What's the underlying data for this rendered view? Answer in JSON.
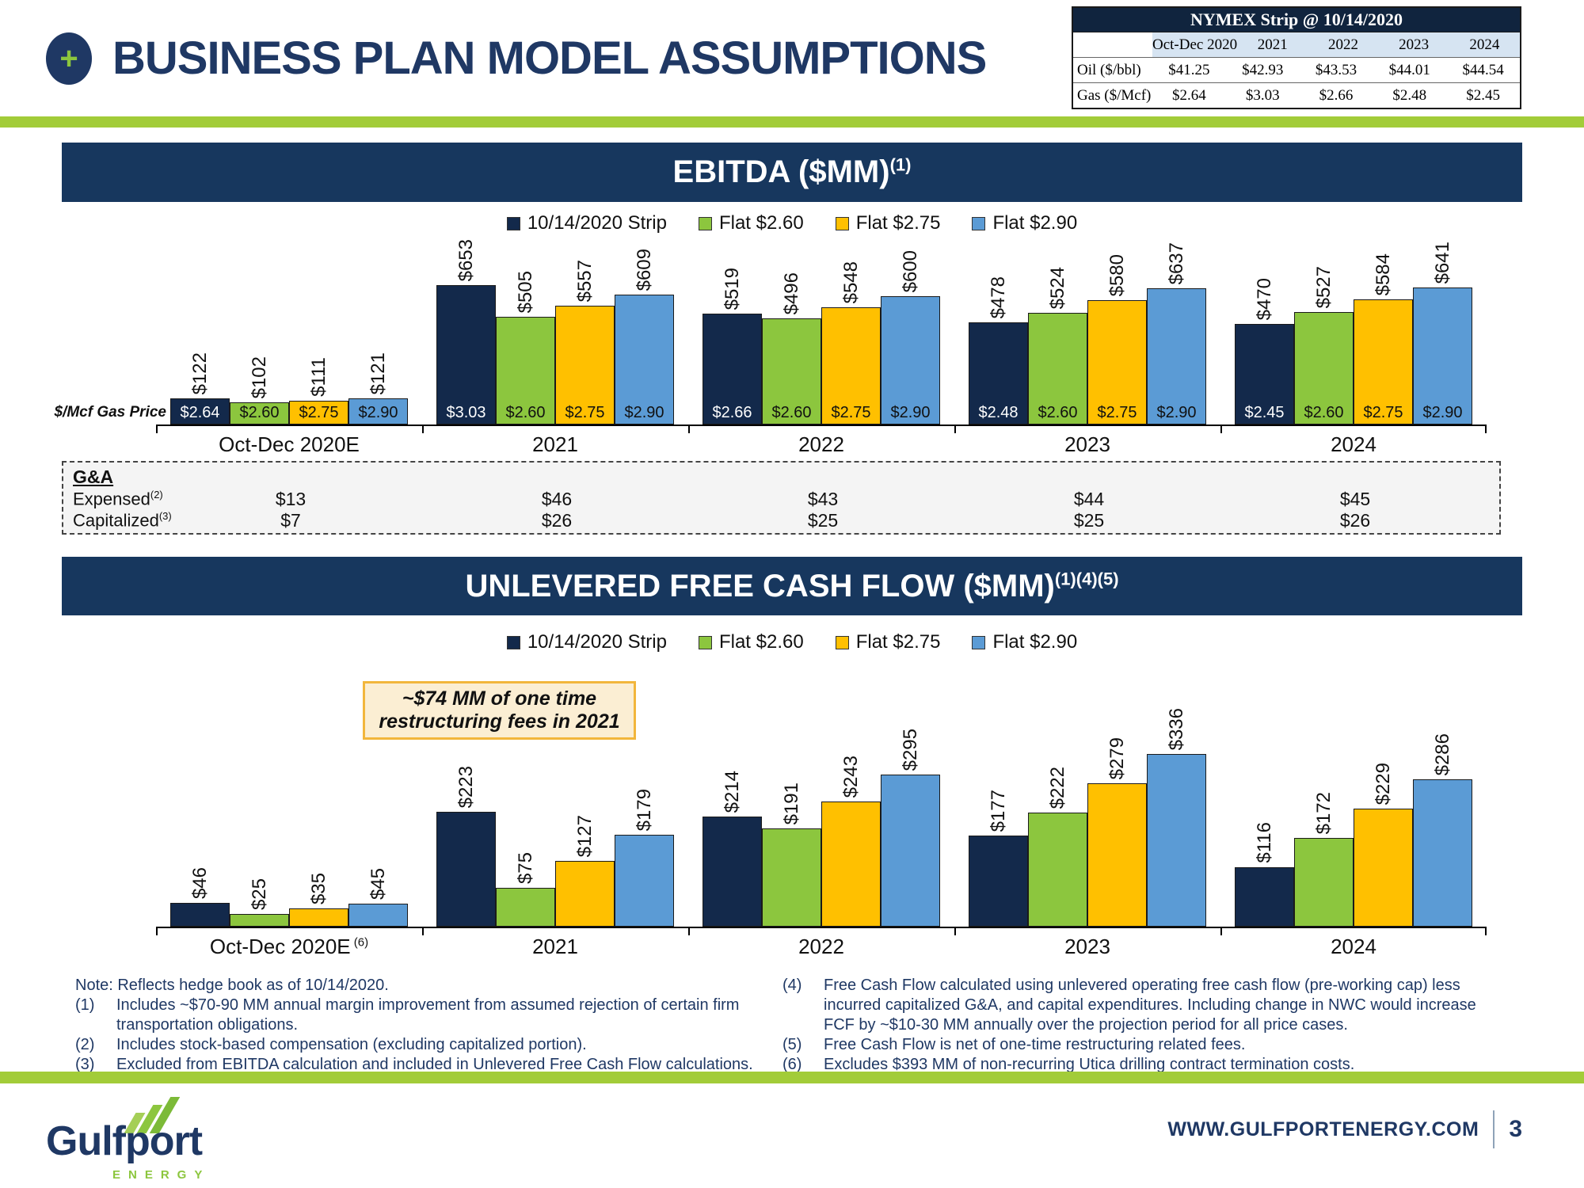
{
  "header": {
    "title": "BUSINESS PLAN MODEL ASSUMPTIONS"
  },
  "icons": {
    "plus": "+"
  },
  "nymex_table": {
    "title": "NYMEX Strip @ 10/14/2020",
    "columns": [
      "Oct-Dec 2020",
      "2021",
      "2022",
      "2023",
      "2024"
    ],
    "rows": [
      {
        "label": "Oil ($/bbl)",
        "values": [
          "$41.25",
          "$42.93",
          "$43.53",
          "$44.01",
          "$44.54"
        ]
      },
      {
        "label": "Gas ($/Mcf)",
        "values": [
          "$2.64",
          "$3.03",
          "$2.66",
          "$2.48",
          "$2.45"
        ]
      }
    ]
  },
  "chart_data": [
    {
      "type": "bar",
      "title": "EBITDA ($MM)",
      "title_sup": "(1)",
      "categories": [
        "Oct-Dec 2020E",
        "2021",
        "2022",
        "2023",
        "2024"
      ],
      "category_sups": [
        "",
        "",
        "",
        "",
        ""
      ],
      "axis_left_label": "$/Mcf Gas Price",
      "value_prefix": "$",
      "ylim": [
        0,
        700
      ],
      "grid": false,
      "legend_position": "top",
      "series": [
        {
          "name": "10/14/2020 Strip",
          "color": "#13294B",
          "values": [
            122,
            653,
            519,
            478,
            470
          ],
          "inside_labels": [
            "$2.64",
            "$3.03",
            "$2.66",
            "$2.48",
            "$2.45"
          ]
        },
        {
          "name": "Flat $2.60",
          "color": "#8CC63E",
          "values": [
            102,
            505,
            496,
            524,
            527
          ],
          "inside_labels": [
            "$2.60",
            "$2.60",
            "$2.60",
            "$2.60",
            "$2.60"
          ]
        },
        {
          "name": "Flat $2.75",
          "color": "#FFC000",
          "values": [
            111,
            557,
            548,
            580,
            584
          ],
          "inside_labels": [
            "$2.75",
            "$2.75",
            "$2.75",
            "$2.75",
            "$2.75"
          ]
        },
        {
          "name": "Flat $2.90",
          "color": "#5B9BD5",
          "values": [
            121,
            609,
            600,
            637,
            641
          ],
          "inside_labels": [
            "$2.90",
            "$2.90",
            "$2.90",
            "$2.90",
            "$2.90"
          ]
        }
      ]
    },
    {
      "type": "bar",
      "title": "UNLEVERED FREE CASH FLOW ($MM)",
      "title_sup": "(1)(4)(5)",
      "categories": [
        "Oct-Dec 2020E",
        "2021",
        "2022",
        "2023",
        "2024"
      ],
      "category_sups": [
        "(6)",
        "",
        "",
        "",
        ""
      ],
      "annotation": "~$74 MM of one time restructuring fees in 2021",
      "value_prefix": "$",
      "ylim": [
        0,
        360
      ],
      "grid": false,
      "legend_position": "top",
      "series": [
        {
          "name": "10/14/2020 Strip",
          "color": "#13294B",
          "values": [
            46,
            223,
            214,
            177,
            116
          ]
        },
        {
          "name": "Flat $2.60",
          "color": "#8CC63E",
          "values": [
            25,
            75,
            191,
            222,
            172
          ]
        },
        {
          "name": "Flat $2.75",
          "color": "#FFC000",
          "values": [
            35,
            127,
            243,
            279,
            229
          ]
        },
        {
          "name": "Flat $2.90",
          "color": "#5B9BD5",
          "values": [
            45,
            179,
            295,
            336,
            286
          ]
        }
      ]
    }
  ],
  "gna_table": {
    "heading": "G&A",
    "rows": [
      {
        "label": "Expensed",
        "sup": "(2)",
        "values": [
          "$13",
          "$46",
          "$43",
          "$44",
          "$45"
        ]
      },
      {
        "label": "Capitalized",
        "sup": "(3)",
        "values": [
          "$7",
          "$26",
          "$25",
          "$25",
          "$26"
        ]
      }
    ]
  },
  "notes": {
    "left": [
      {
        "num": "",
        "text": "Note: Reflects hedge book as of 10/14/2020."
      },
      {
        "num": "(1)",
        "text": "Includes ~$70-90 MM annual margin improvement from assumed rejection of certain firm transportation obligations."
      },
      {
        "num": "(2)",
        "text": "Includes stock-based compensation (excluding capitalized portion)."
      },
      {
        "num": "(3)",
        "text": "Excluded from EBITDA calculation and included in Unlevered Free Cash Flow calculations."
      }
    ],
    "right": [
      {
        "num": "(4)",
        "text": "Free Cash Flow calculated using unlevered operating free cash flow (pre-working cap) less incurred capitalized G&A, and capital expenditures. Including change in NWC would increase FCF by ~$10-30 MM annually over the projection period for all price cases."
      },
      {
        "num": "(5)",
        "text": "Free Cash Flow is net of one-time restructuring related fees."
      },
      {
        "num": "(6)",
        "text": "Excludes $393 MM of non-recurring Utica drilling contract termination costs."
      }
    ]
  },
  "footer": {
    "logo_text": "Gulfport",
    "logo_subtext": "ENERGY",
    "website": "WWW.GULFPORTENERGY.COM",
    "page_number": "3"
  },
  "colors": {
    "navy_text": "#1F3864",
    "band_navy": "#17375E",
    "bar_navy": "#13294B",
    "bar_green": "#8CC63E",
    "bar_orange": "#FFC000",
    "bar_blue": "#5B9BD5",
    "accent_green": "#A2CC39",
    "callout_bg": "#FBEED3",
    "callout_border": "#F2B63C",
    "table_header_blue": "#D6E4F2"
  }
}
